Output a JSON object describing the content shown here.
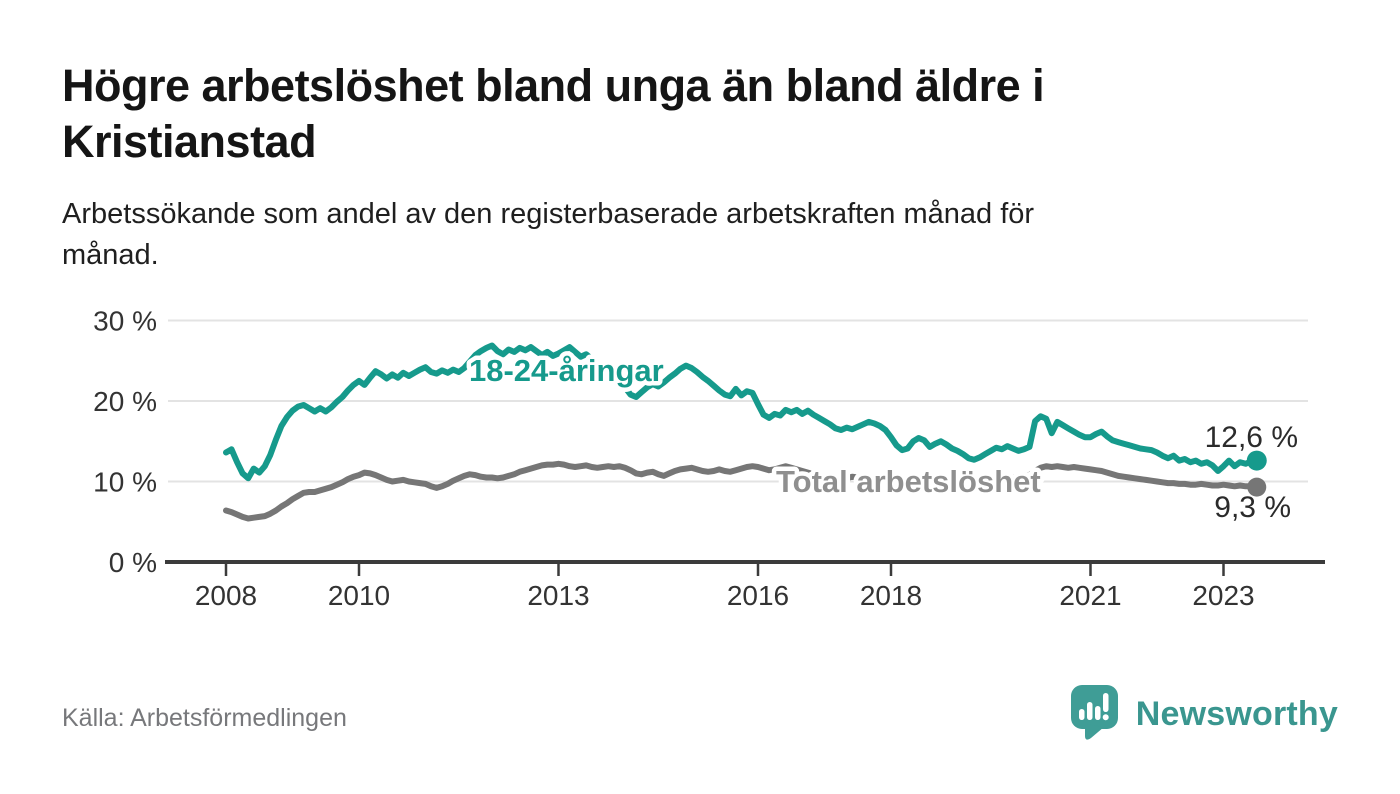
{
  "header": {
    "title": "Högre arbetslöshet bland unga än bland äldre i Kristianstad",
    "title_lines": [
      "Högre arbetslöshet bland unga än bland äldre i",
      "Kristianstad"
    ],
    "subtitle": "Arbetssökande som andel av den registerbaserade arbetskraften månad för månad.",
    "subtitle_lines": [
      "Arbetssökande som andel av den registerbaserade arbetskraften månad för",
      "månad."
    ]
  },
  "footer": {
    "source": "Källa: Arbetsförmedlingen",
    "logo_text": "Newsworthy",
    "logo_icon": "bar-chart-speech-bubble-icon"
  },
  "colors": {
    "youth_line": "#169a8c",
    "youth_label": "#169a8c",
    "total_line": "#767676",
    "total_label": "#8f8f8f",
    "grid": "#e3e3e3",
    "axis": "#3b3b3b",
    "tick_text": "#333333",
    "end_label_text": "#2b2b2b"
  },
  "chart_data": {
    "type": "line",
    "x_domain": {
      "start": "2008-01",
      "end": "2023-07",
      "frequency": "monthly"
    },
    "ylim": [
      0,
      30
    ],
    "grid": true,
    "y_ticks": [
      {
        "value": 0,
        "label": "0 %"
      },
      {
        "value": 10,
        "label": "10 %"
      },
      {
        "value": 20,
        "label": "20 %"
      },
      {
        "value": 30,
        "label": "30 %"
      }
    ],
    "x_ticks": [
      {
        "year": 2008,
        "label": "2008"
      },
      {
        "year": 2010,
        "label": "2010"
      },
      {
        "year": 2013,
        "label": "2013"
      },
      {
        "year": 2016,
        "label": "2016"
      },
      {
        "year": 2018,
        "label": "2018"
      },
      {
        "year": 2021,
        "label": "2021"
      },
      {
        "year": 2023,
        "label": "2023"
      }
    ],
    "series": [
      {
        "id": "youth",
        "name": "18-24-åringar",
        "color": "#169a8c",
        "end_value": 12.6,
        "end_value_label": "12,6 %",
        "values": [
          13.6,
          14.0,
          12.4,
          11.0,
          10.4,
          11.6,
          11.1,
          11.9,
          13.3,
          15.2,
          16.9,
          18.0,
          18.8,
          19.3,
          19.5,
          19.1,
          18.7,
          19.1,
          18.7,
          19.2,
          19.9,
          20.5,
          21.3,
          22.0,
          22.5,
          22.0,
          22.9,
          23.7,
          23.3,
          22.8,
          23.3,
          22.9,
          23.5,
          23.1,
          23.5,
          23.9,
          24.2,
          23.6,
          23.4,
          23.8,
          23.5,
          23.9,
          23.6,
          24.1,
          24.9,
          25.7,
          26.2,
          26.6,
          26.9,
          26.2,
          25.8,
          26.4,
          26.1,
          26.6,
          26.3,
          26.7,
          26.2,
          25.7,
          26.1,
          25.6,
          25.9,
          26.3,
          26.7,
          26.1,
          25.5,
          25.8,
          25.2,
          24.7,
          24.3,
          23.8,
          23.1,
          22.4,
          21.7,
          20.8,
          20.5,
          21.1,
          21.7,
          22.1,
          21.8,
          22.3,
          22.9,
          23.4,
          24.0,
          24.4,
          24.1,
          23.6,
          23.0,
          22.5,
          21.9,
          21.3,
          20.8,
          20.6,
          21.5,
          20.7,
          21.2,
          21.0,
          19.6,
          18.3,
          17.9,
          18.4,
          18.2,
          18.9,
          18.6,
          18.9,
          18.4,
          18.8,
          18.3,
          17.9,
          17.5,
          17.1,
          16.6,
          16.4,
          16.7,
          16.5,
          16.8,
          17.1,
          17.4,
          17.2,
          16.9,
          16.4,
          15.5,
          14.5,
          13.9,
          14.1,
          15.0,
          15.4,
          15.1,
          14.3,
          14.7,
          15.0,
          14.6,
          14.1,
          13.8,
          13.4,
          12.9,
          12.7,
          13.0,
          13.4,
          13.8,
          14.2,
          14.0,
          14.4,
          14.1,
          13.8,
          14.0,
          14.3,
          17.5,
          18.1,
          17.8,
          16.0,
          17.4,
          17.0,
          16.6,
          16.2,
          15.8,
          15.5,
          15.5,
          15.9,
          16.2,
          15.6,
          15.1,
          14.9,
          14.7,
          14.5,
          14.3,
          14.1,
          14.0,
          13.9,
          13.6,
          13.2,
          12.9,
          13.2,
          12.6,
          12.8,
          12.4,
          12.6,
          12.2,
          12.4,
          12.0,
          11.3,
          11.9,
          12.6,
          11.9,
          12.4,
          12.2,
          12.5,
          12.6
        ]
      },
      {
        "id": "total",
        "name": "Total arbetslöshet",
        "color": "#767676",
        "end_value": 9.3,
        "end_value_label": "9,3 %",
        "values": [
          6.4,
          6.2,
          5.9,
          5.6,
          5.4,
          5.5,
          5.6,
          5.7,
          6.0,
          6.4,
          6.9,
          7.3,
          7.8,
          8.2,
          8.6,
          8.7,
          8.7,
          8.9,
          9.1,
          9.3,
          9.6,
          9.9,
          10.3,
          10.6,
          10.8,
          11.1,
          11.0,
          10.8,
          10.5,
          10.2,
          10.0,
          10.1,
          10.2,
          10.0,
          9.9,
          9.8,
          9.7,
          9.4,
          9.2,
          9.4,
          9.7,
          10.1,
          10.4,
          10.7,
          10.9,
          10.8,
          10.6,
          10.5,
          10.5,
          10.4,
          10.5,
          10.7,
          10.9,
          11.2,
          11.4,
          11.6,
          11.8,
          12.0,
          12.1,
          12.1,
          12.2,
          12.1,
          11.9,
          11.8,
          11.9,
          12.0,
          11.8,
          11.7,
          11.8,
          11.9,
          11.8,
          11.9,
          11.7,
          11.4,
          11.0,
          10.9,
          11.1,
          11.2,
          10.9,
          10.7,
          11.0,
          11.3,
          11.5,
          11.6,
          11.7,
          11.5,
          11.3,
          11.2,
          11.3,
          11.5,
          11.3,
          11.2,
          11.4,
          11.6,
          11.8,
          11.9,
          11.8,
          11.6,
          11.4,
          11.5,
          11.7,
          11.9,
          11.7,
          11.5,
          11.3,
          11.1,
          10.9,
          10.7,
          10.6,
          10.5,
          10.4,
          10.5,
          10.4,
          10.6,
          10.5,
          10.4,
          10.5,
          10.4,
          10.3,
          10.2,
          10.1,
          10.0,
          9.9,
          9.8,
          9.9,
          10.0,
          9.9,
          9.8,
          9.9,
          10.0,
          10.1,
          10.2,
          10.1,
          10.0,
          9.9,
          9.8,
          9.9,
          10.0,
          10.1,
          10.2,
          10.3,
          10.4,
          10.5,
          10.6,
          10.7,
          10.8,
          11.3,
          11.7,
          11.9,
          11.8,
          11.9,
          11.8,
          11.7,
          11.8,
          11.7,
          11.6,
          11.5,
          11.4,
          11.3,
          11.1,
          10.9,
          10.7,
          10.6,
          10.5,
          10.4,
          10.3,
          10.2,
          10.1,
          10.0,
          9.9,
          9.8,
          9.8,
          9.7,
          9.7,
          9.6,
          9.6,
          9.7,
          9.6,
          9.5,
          9.5,
          9.6,
          9.5,
          9.4,
          9.5,
          9.4,
          9.4,
          9.3
        ]
      }
    ]
  }
}
